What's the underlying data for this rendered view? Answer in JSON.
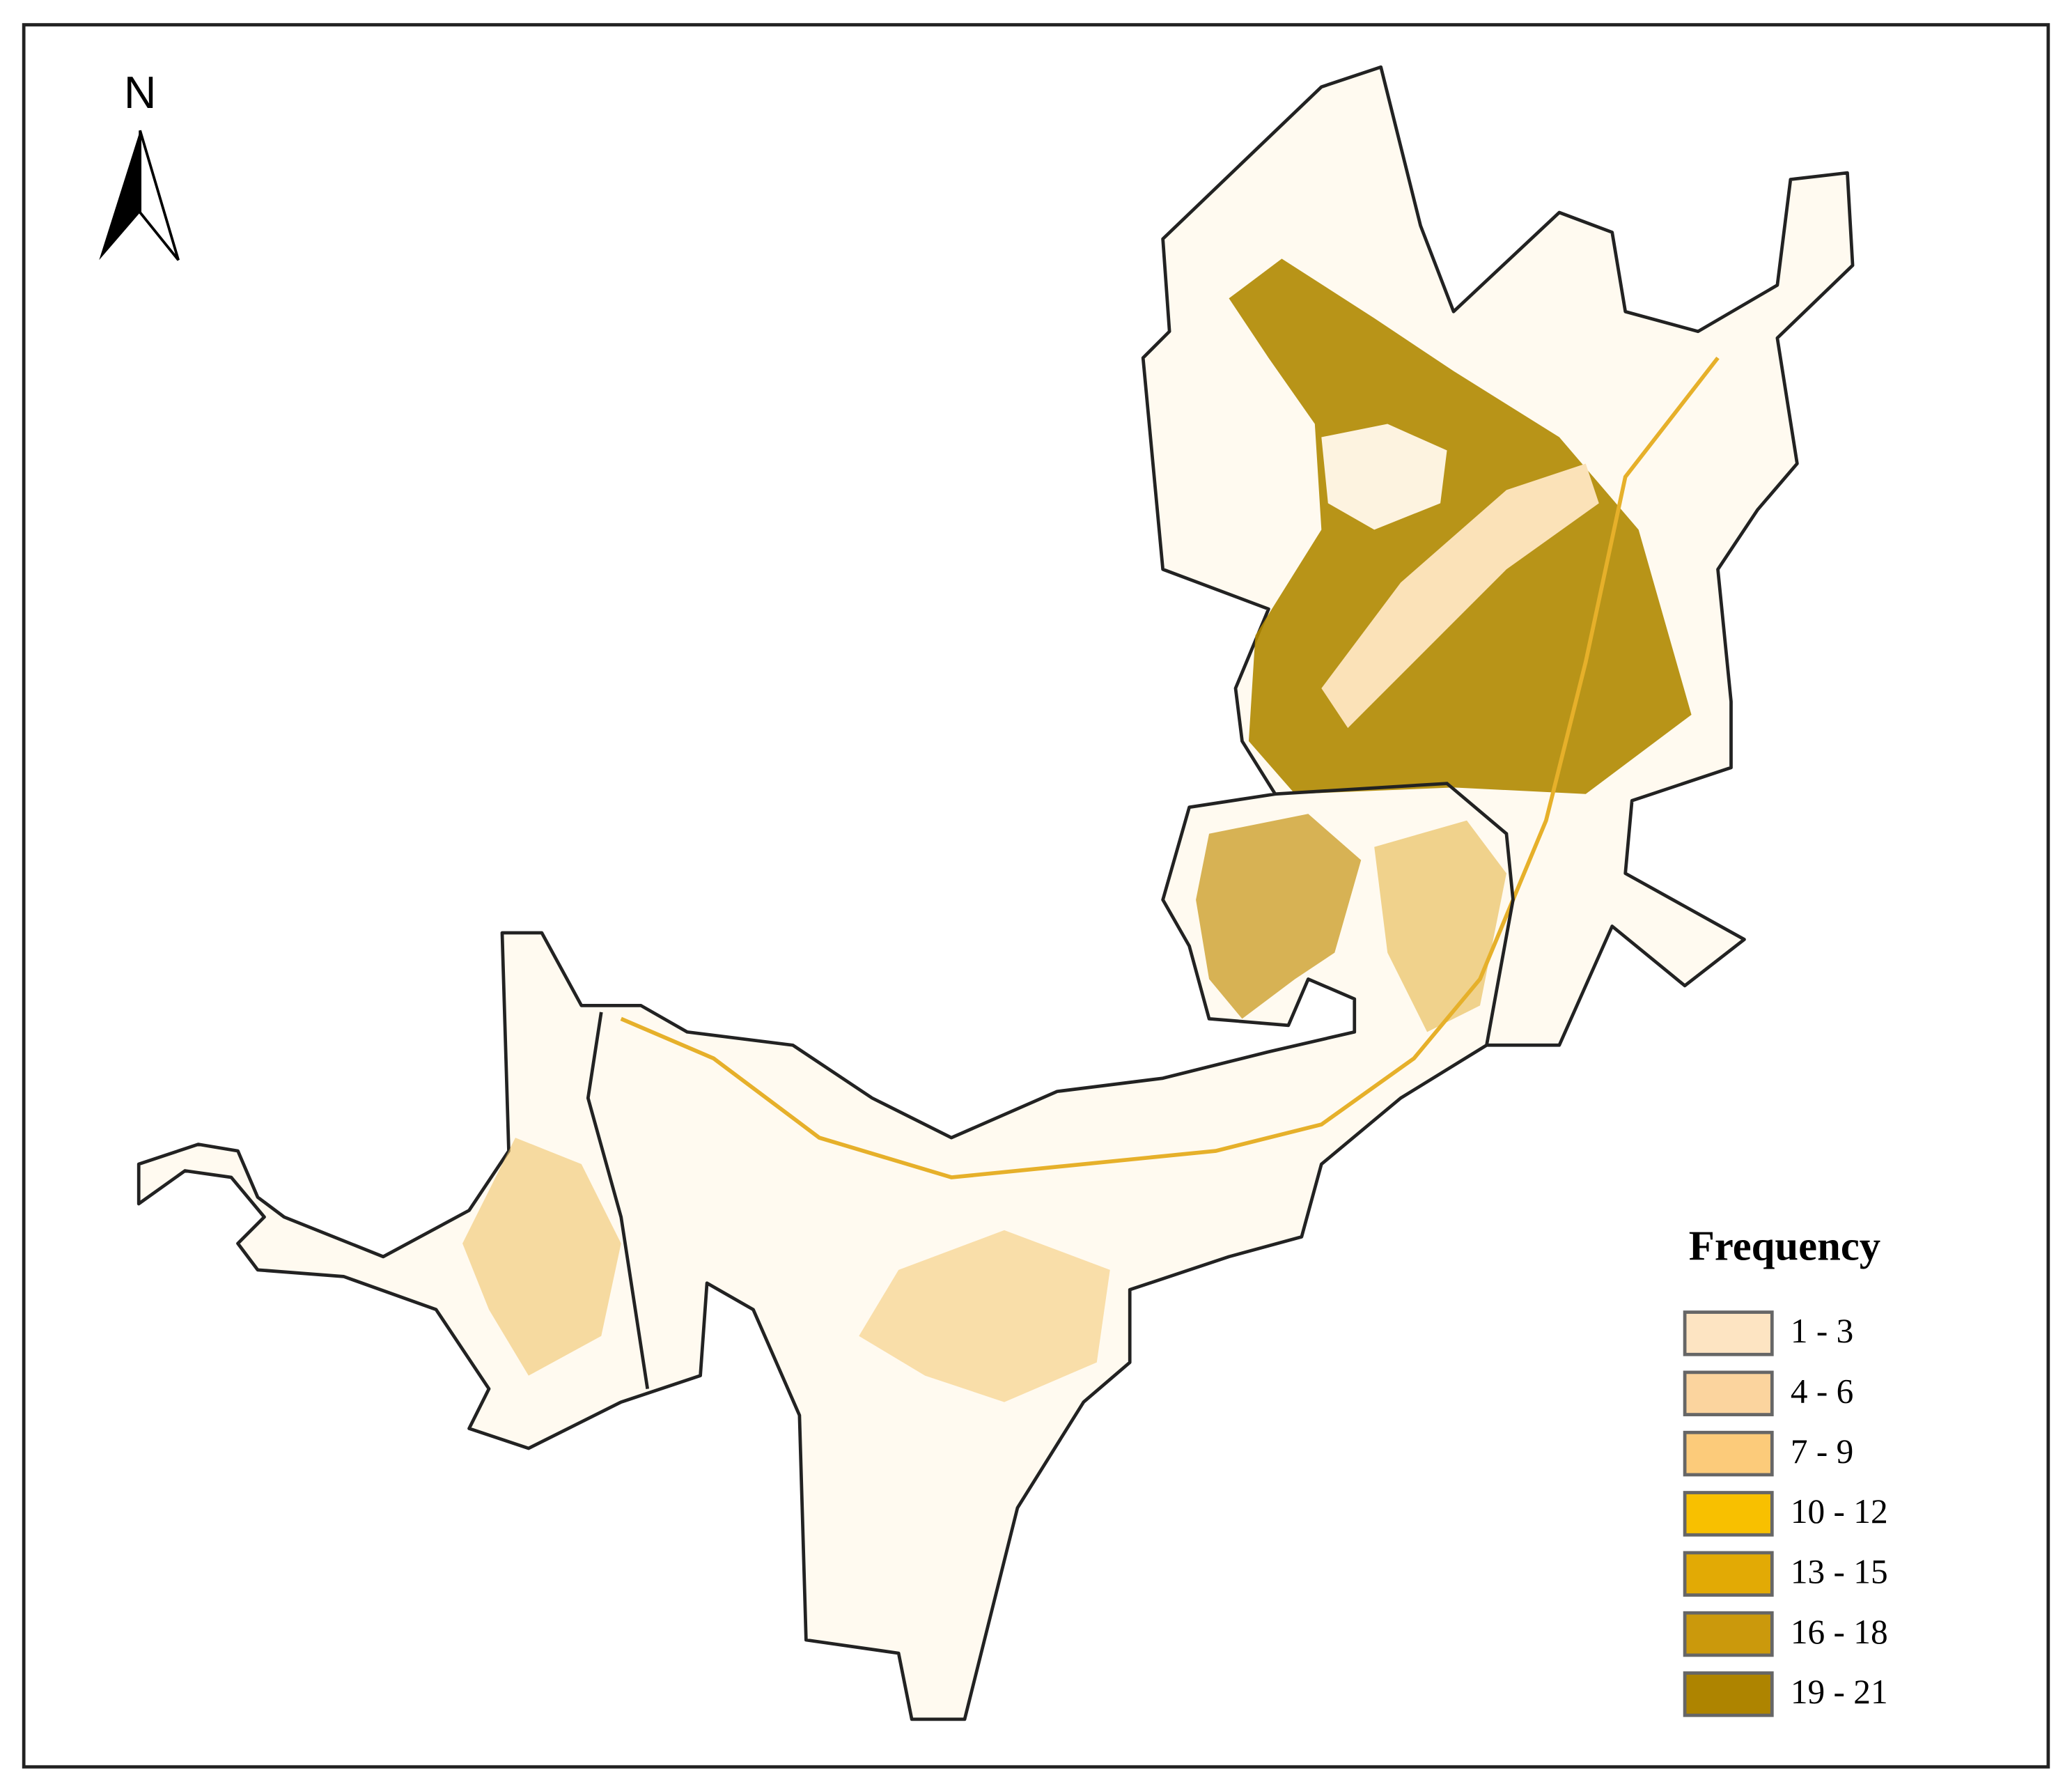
{
  "north_arrow": {
    "label": "N"
  },
  "legend": {
    "title": "Frequency",
    "items": [
      {
        "label": "1 - 3",
        "color": "#fde4c2"
      },
      {
        "label": "4 - 6",
        "color": "#fbd49e"
      },
      {
        "label": "7 - 9",
        "color": "#fccb7a"
      },
      {
        "label": "10 - 12",
        "color": "#f8c000"
      },
      {
        "label": "13 - 15",
        "color": "#e2aa05"
      },
      {
        "label": "16 - 18",
        "color": "#cb990c"
      },
      {
        "label": "19 - 21",
        "color": "#ae8400"
      }
    ]
  }
}
